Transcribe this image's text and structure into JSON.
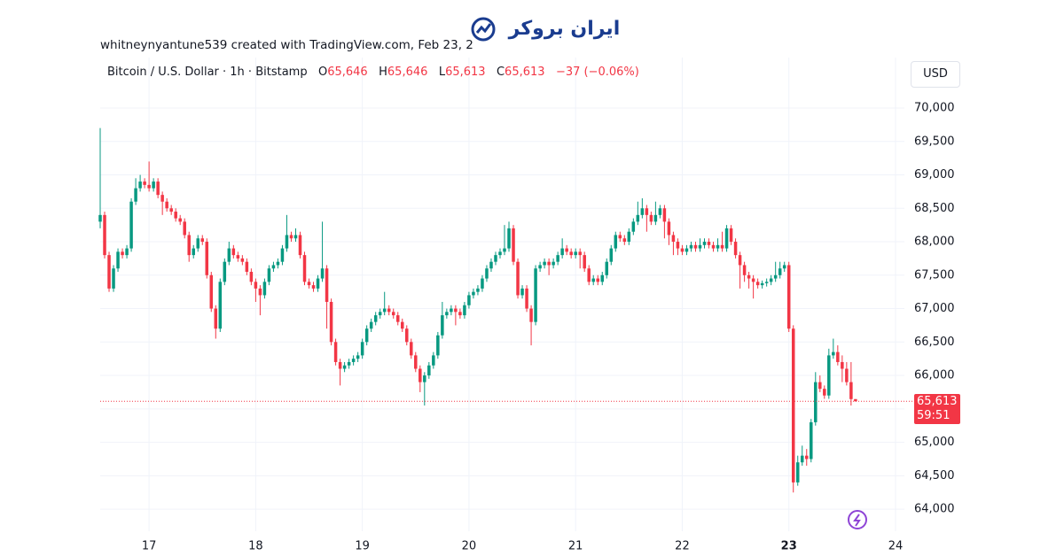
{
  "header": "whitneynyantune539 created with TradingView.com, Feb 23, 2",
  "logo": "ایران بروکر",
  "chart_data": {
    "type": "candlestick",
    "title": "Bitcoin / U.S. Dollar · 1h · Bitstamp",
    "ohlc_legend": {
      "o_label": "O",
      "open": "65,646",
      "h_label": "H",
      "high": "65,646",
      "l_label": "L",
      "low": "65,613",
      "c_label": "C",
      "close": "65,613",
      "change": "−37 (−0.06%)"
    },
    "currency": "USD",
    "last_price": {
      "value": 65613,
      "label": "65,613"
    },
    "countdown": "59:51",
    "up_color": "#089981",
    "down_color": "#f23645",
    "grid": true,
    "xlim": [
      0,
      181
    ],
    "xticks": [
      {
        "value": 11,
        "label": "17"
      },
      {
        "value": 35,
        "label": "18"
      },
      {
        "value": 59,
        "label": "19"
      },
      {
        "value": 83,
        "label": "20"
      },
      {
        "value": 107,
        "label": "21"
      },
      {
        "value": 131,
        "label": "22"
      },
      {
        "value": 155,
        "label": "23"
      },
      {
        "value": 179,
        "label": "24"
      }
    ],
    "ylim": [
      63670,
      70755
    ],
    "yticks": [
      {
        "value": 64000,
        "label": "64,000"
      },
      {
        "value": 64500,
        "label": "64,500"
      },
      {
        "value": 65000,
        "label": "65,000"
      },
      {
        "value": 65500,
        "label": "65,500"
      },
      {
        "value": 66000,
        "label": "66,000"
      },
      {
        "value": 66500,
        "label": "66,500"
      },
      {
        "value": 67000,
        "label": "67,000"
      },
      {
        "value": 67500,
        "label": "67,500"
      },
      {
        "value": 68000,
        "label": "68,000"
      },
      {
        "value": 68500,
        "label": "68,500"
      },
      {
        "value": 69000,
        "label": "69,000"
      },
      {
        "value": 69500,
        "label": "69,500"
      },
      {
        "value": 70000,
        "label": "70,000"
      }
    ],
    "candles": [
      [
        68300,
        69700,
        68200,
        68400
      ],
      [
        68400,
        68450,
        67750,
        67800
      ],
      [
        67800,
        67850,
        67250,
        67300
      ],
      [
        67300,
        67650,
        67250,
        67600
      ],
      [
        67600,
        67900,
        67550,
        67850
      ],
      [
        67850,
        67900,
        67750,
        67800
      ],
      [
        67800,
        67950,
        67750,
        67900
      ],
      [
        67900,
        68650,
        67850,
        68600
      ],
      [
        68600,
        68950,
        68550,
        68800
      ],
      [
        68800,
        69000,
        68750,
        68900
      ],
      [
        68900,
        68950,
        68800,
        68850
      ],
      [
        68850,
        69200,
        68750,
        68800
      ],
      [
        68800,
        68950,
        68750,
        68900
      ],
      [
        68900,
        68950,
        68650,
        68700
      ],
      [
        68700,
        68750,
        68400,
        68600
      ],
      [
        68600,
        68650,
        68450,
        68500
      ],
      [
        68500,
        68550,
        68400,
        68450
      ],
      [
        68450,
        68500,
        68300,
        68350
      ],
      [
        68350,
        68400,
        68250,
        68300
      ],
      [
        68300,
        68350,
        68050,
        68100
      ],
      [
        68100,
        68150,
        67700,
        67800
      ],
      [
        67800,
        67950,
        67750,
        67900
      ],
      [
        67900,
        68100,
        67850,
        68050
      ],
      [
        68050,
        68100,
        67950,
        68000
      ],
      [
        68000,
        68050,
        67450,
        67500
      ],
      [
        67500,
        67550,
        66950,
        67000
      ],
      [
        67000,
        67050,
        66550,
        66700
      ],
      [
        66700,
        67450,
        66650,
        67400
      ],
      [
        67400,
        67750,
        67350,
        67700
      ],
      [
        67700,
        68000,
        67650,
        67900
      ],
      [
        67900,
        67950,
        67750,
        67800
      ],
      [
        67800,
        67850,
        67700,
        67750
      ],
      [
        67750,
        67800,
        67650,
        67700
      ],
      [
        67700,
        67750,
        67500,
        67550
      ],
      [
        67550,
        67600,
        67350,
        67400
      ],
      [
        67400,
        67450,
        67100,
        67300
      ],
      [
        67300,
        67350,
        66900,
        67200
      ],
      [
        67200,
        67450,
        67150,
        67400
      ],
      [
        67400,
        67650,
        67350,
        67600
      ],
      [
        67600,
        67700,
        67550,
        67650
      ],
      [
        67650,
        67750,
        67600,
        67700
      ],
      [
        67700,
        67950,
        67650,
        67900
      ],
      [
        67900,
        68400,
        67850,
        68100
      ],
      [
        68100,
        68150,
        68000,
        68050
      ],
      [
        68050,
        68200,
        68000,
        68100
      ],
      [
        68100,
        68150,
        67750,
        67800
      ],
      [
        67800,
        67850,
        67350,
        67400
      ],
      [
        67400,
        67450,
        67300,
        67350
      ],
      [
        67350,
        67400,
        67250,
        67300
      ],
      [
        67300,
        67500,
        67250,
        67450
      ],
      [
        67450,
        68300,
        67400,
        67600
      ],
      [
        67600,
        67650,
        66700,
        67100
      ],
      [
        67100,
        67150,
        66450,
        66500
      ],
      [
        66500,
        66550,
        66150,
        66200
      ],
      [
        66200,
        66250,
        65850,
        66100
      ],
      [
        66100,
        66200,
        66050,
        66150
      ],
      [
        66150,
        66250,
        66100,
        66200
      ],
      [
        66200,
        66300,
        66150,
        66250
      ],
      [
        66250,
        66350,
        66200,
        66300
      ],
      [
        66300,
        66550,
        66250,
        66500
      ],
      [
        66500,
        66750,
        66450,
        66700
      ],
      [
        66700,
        66850,
        66650,
        66800
      ],
      [
        66800,
        66950,
        66750,
        66900
      ],
      [
        66900,
        67000,
        66850,
        66950
      ],
      [
        66950,
        67250,
        66900,
        67000
      ],
      [
        67000,
        67050,
        66900,
        66950
      ],
      [
        66950,
        67000,
        66850,
        66900
      ],
      [
        66900,
        66950,
        66750,
        66800
      ],
      [
        66800,
        66850,
        66650,
        66700
      ],
      [
        66700,
        66750,
        66450,
        66500
      ],
      [
        66500,
        66550,
        66250,
        66300
      ],
      [
        66300,
        66350,
        66050,
        66100
      ],
      [
        66100,
        66150,
        65750,
        65900
      ],
      [
        65900,
        66050,
        65550,
        66000
      ],
      [
        66000,
        66200,
        65950,
        66150
      ],
      [
        66150,
        66350,
        66100,
        66300
      ],
      [
        66300,
        66650,
        66250,
        66600
      ],
      [
        66600,
        67100,
        66550,
        66900
      ],
      [
        66900,
        67000,
        66850,
        66950
      ],
      [
        66950,
        67050,
        66900,
        67000
      ],
      [
        67000,
        67050,
        66750,
        66950
      ],
      [
        66950,
        67000,
        66850,
        66900
      ],
      [
        66900,
        67100,
        66850,
        67050
      ],
      [
        67050,
        67250,
        67000,
        67200
      ],
      [
        67200,
        67300,
        67150,
        67250
      ],
      [
        67250,
        67350,
        67200,
        67300
      ],
      [
        67300,
        67500,
        67250,
        67450
      ],
      [
        67450,
        67650,
        67400,
        67600
      ],
      [
        67600,
        67750,
        67550,
        67700
      ],
      [
        67700,
        67850,
        67650,
        67800
      ],
      [
        67800,
        67900,
        67750,
        67850
      ],
      [
        67850,
        68250,
        67800,
        67900
      ],
      [
        67900,
        68300,
        67850,
        68200
      ],
      [
        68200,
        68250,
        67650,
        67700
      ],
      [
        67700,
        67750,
        67150,
        67200
      ],
      [
        67200,
        67350,
        67150,
        67300
      ],
      [
        67300,
        67350,
        66950,
        67000
      ],
      [
        67000,
        67050,
        66450,
        66800
      ],
      [
        66800,
        67650,
        66750,
        67600
      ],
      [
        67600,
        67700,
        67550,
        67650
      ],
      [
        67650,
        67750,
        67600,
        67700
      ],
      [
        67700,
        67750,
        67500,
        67650
      ],
      [
        67650,
        67750,
        67600,
        67700
      ],
      [
        67700,
        67850,
        67650,
        67800
      ],
      [
        67800,
        68050,
        67750,
        67900
      ],
      [
        67900,
        67950,
        67800,
        67850
      ],
      [
        67850,
        67900,
        67750,
        67800
      ],
      [
        67800,
        67900,
        67750,
        67850
      ],
      [
        67850,
        67900,
        67600,
        67800
      ],
      [
        67800,
        67850,
        67550,
        67600
      ],
      [
        67600,
        67650,
        67350,
        67400
      ],
      [
        67400,
        67500,
        67350,
        67450
      ],
      [
        67450,
        67500,
        67350,
        67400
      ],
      [
        67400,
        67550,
        67350,
        67500
      ],
      [
        67500,
        67750,
        67450,
        67700
      ],
      [
        67700,
        67950,
        67650,
        67900
      ],
      [
        67900,
        68150,
        67850,
        68100
      ],
      [
        68100,
        68150,
        68000,
        68050
      ],
      [
        68050,
        68100,
        67950,
        68000
      ],
      [
        68000,
        68200,
        67950,
        68150
      ],
      [
        68150,
        68350,
        68100,
        68300
      ],
      [
        68300,
        68600,
        68250,
        68400
      ],
      [
        68400,
        68650,
        68350,
        68500
      ],
      [
        68500,
        68550,
        68150,
        68400
      ],
      [
        68400,
        68450,
        68250,
        68300
      ],
      [
        68300,
        68600,
        68250,
        68400
      ],
      [
        68400,
        68550,
        68350,
        68500
      ],
      [
        68500,
        68550,
        68050,
        68300
      ],
      [
        68300,
        68350,
        67950,
        68100
      ],
      [
        68100,
        68150,
        67800,
        68000
      ],
      [
        68000,
        68050,
        67800,
        67900
      ],
      [
        67900,
        67950,
        67800,
        67850
      ],
      [
        67850,
        67950,
        67800,
        67900
      ],
      [
        67900,
        68000,
        67850,
        67950
      ],
      [
        67950,
        68000,
        67850,
        67900
      ],
      [
        67900,
        68050,
        67850,
        67950
      ],
      [
        67950,
        68050,
        67900,
        68000
      ],
      [
        68000,
        68050,
        67900,
        67950
      ],
      [
        67950,
        68000,
        67850,
        67900
      ],
      [
        67900,
        68050,
        67850,
        67950
      ],
      [
        67950,
        68150,
        67850,
        67900
      ],
      [
        67900,
        68250,
        67850,
        68200
      ],
      [
        68200,
        68250,
        67950,
        68000
      ],
      [
        68000,
        68050,
        67750,
        67800
      ],
      [
        67800,
        67850,
        67300,
        67650
      ],
      [
        67650,
        67700,
        67400,
        67500
      ],
      [
        67500,
        67550,
        67300,
        67450
      ],
      [
        67450,
        67500,
        67150,
        67400
      ],
      [
        67400,
        67450,
        67300,
        67350
      ],
      [
        67350,
        67420,
        67300,
        67380
      ],
      [
        67380,
        67450,
        67330,
        67400
      ],
      [
        67400,
        67500,
        67350,
        67450
      ],
      [
        67450,
        67700,
        67400,
        67500
      ],
      [
        67500,
        67700,
        67450,
        67600
      ],
      [
        67600,
        67700,
        67550,
        67650
      ],
      [
        67650,
        67700,
        66650,
        66700
      ],
      [
        66700,
        66750,
        64250,
        64400
      ],
      [
        64400,
        64800,
        64350,
        64700
      ],
      [
        64700,
        64950,
        64650,
        64800
      ],
      [
        64800,
        64900,
        64650,
        64750
      ],
      [
        64750,
        65350,
        64700,
        65300
      ],
      [
        65300,
        66050,
        65250,
        65900
      ],
      [
        65900,
        66000,
        65750,
        65800
      ],
      [
        65800,
        65850,
        65650,
        65700
      ],
      [
        65700,
        66400,
        65650,
        66300
      ],
      [
        66300,
        66550,
        66250,
        66350
      ],
      [
        66350,
        66450,
        66150,
        66200
      ],
      [
        66200,
        66300,
        65900,
        66100
      ],
      [
        66100,
        66200,
        65850,
        65900
      ],
      [
        65900,
        66200,
        65550,
        65646
      ],
      [
        65646,
        65646,
        65613,
        65613
      ]
    ]
  }
}
